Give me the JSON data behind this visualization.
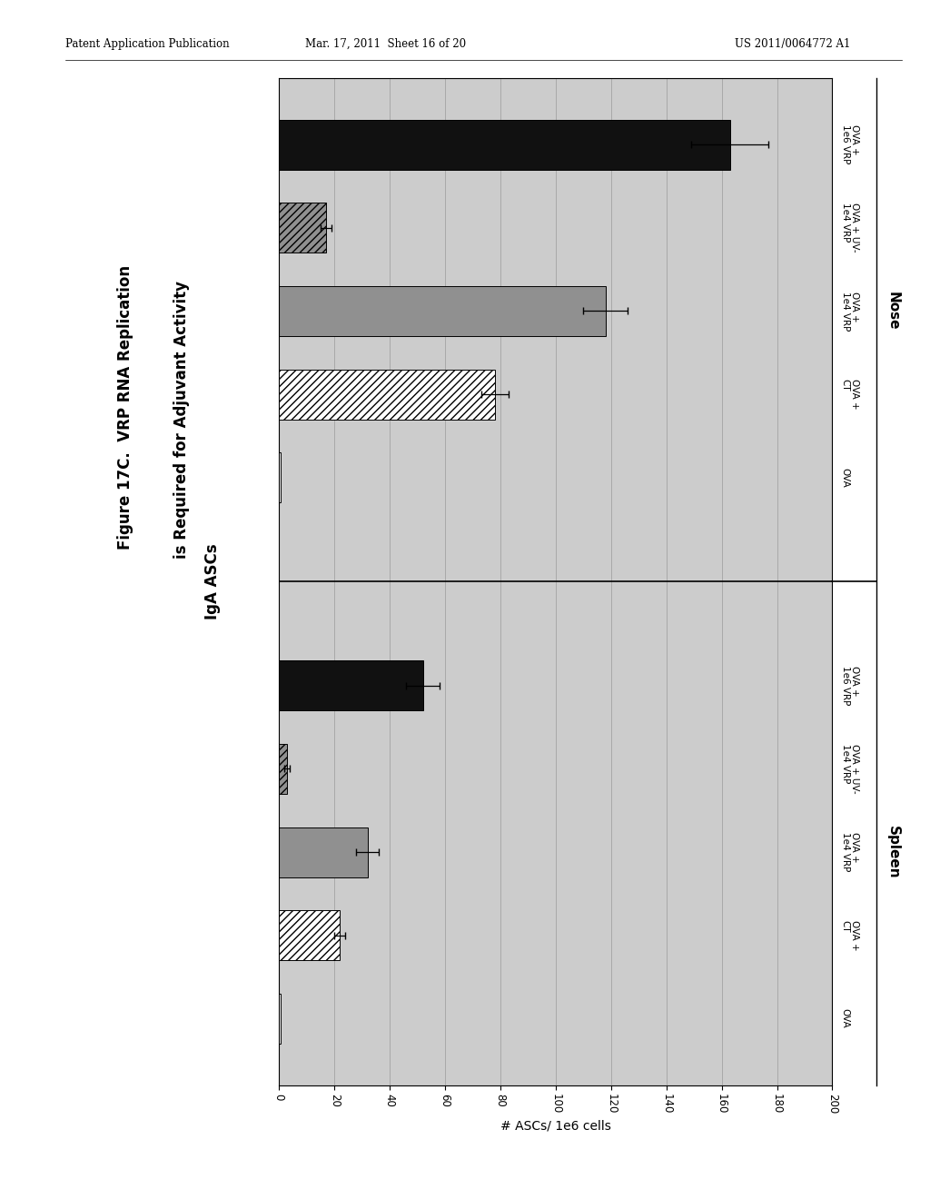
{
  "header_left": "Patent Application Publication",
  "header_mid": "Mar. 17, 2011  Sheet 16 of 20",
  "header_right": "US 2011/0064772 A1",
  "title_line1": "Figure 17C.  VRP RNA Replication",
  "title_line2": "is Required for Adjuvant Activity",
  "panel_label": "IgA ASCs",
  "axis_label": "# ASCs/ 1e6 cells",
  "xlim_max": 200,
  "xticks": [
    0,
    20,
    40,
    60,
    80,
    100,
    120,
    140,
    160,
    180,
    200
  ],
  "chart_bg": "#cccccc",
  "bar_height": 0.6,
  "spleen_bars": [
    {
      "label": "OVA",
      "value": 0.5,
      "error": 0,
      "color": "white",
      "hatch": null
    },
    {
      "label": "OVA +\nCT",
      "value": 22,
      "error": 2,
      "color": "white",
      "hatch": "////"
    },
    {
      "label": "OVA +\n1e4 VRP",
      "value": 32,
      "error": 4,
      "color": "#909090",
      "hatch": null
    },
    {
      "label": "OVA + UV-\n1e4 VRP",
      "value": 3,
      "error": 1,
      "color": "#909090",
      "hatch": "////"
    },
    {
      "label": "OVA +\n1e6 VRP",
      "value": 52,
      "error": 6,
      "color": "#111111",
      "hatch": null
    }
  ],
  "nose_bars": [
    {
      "label": "OVA",
      "value": 0.5,
      "error": 0,
      "color": "white",
      "hatch": null
    },
    {
      "label": "OVA +\nCT",
      "value": 78,
      "error": 5,
      "color": "white",
      "hatch": "////"
    },
    {
      "label": "OVA +\n1e4 VRP",
      "value": 118,
      "error": 8,
      "color": "#909090",
      "hatch": null
    },
    {
      "label": "OVA + UV-\n1e4 VRP",
      "value": 17,
      "error": 2,
      "color": "#909090",
      "hatch": "////"
    },
    {
      "label": "OVA +\n1e6 VRP",
      "value": 163,
      "error": 14,
      "color": "#111111",
      "hatch": null
    }
  ]
}
